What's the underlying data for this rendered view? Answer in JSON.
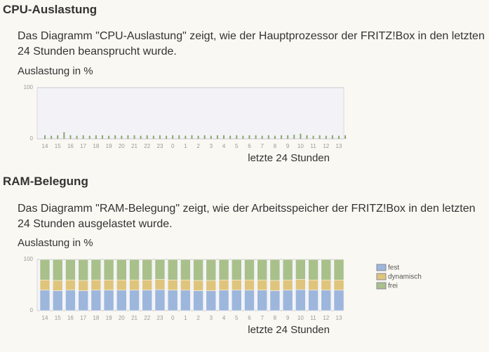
{
  "sections": [
    {
      "heading": "CPU-Auslastung",
      "description": "Das Diagramm \"CPU-Auslastung\" zeigt, wie der Hauptprozessor der FRITZ!Box in den letzten 24 Stunden beansprucht wurde."
    },
    {
      "heading": "RAM-Belegung",
      "description": "Das Diagramm \"RAM-Belegung\" zeigt, wie der Arbeitsspeicher der FRITZ!Box in den letzten 24 Stunden ausgelastet wurde."
    }
  ],
  "chart_data": [
    {
      "type": "bar",
      "ylabel": "Auslastung in %",
      "xlabel": "letzte 24 Stunden",
      "color": "#8aa66e",
      "ylim": [
        0,
        100
      ],
      "yticks": [
        0,
        100
      ],
      "categories": [
        "14",
        null,
        "15",
        null,
        "16",
        null,
        "17",
        null,
        "18",
        null,
        "19",
        null,
        "20",
        null,
        "21",
        null,
        "22",
        null,
        "23",
        null,
        "0",
        null,
        "1",
        null,
        "2",
        null,
        "3",
        null,
        "4",
        null,
        "5",
        null,
        "6",
        null,
        "7",
        null,
        "8",
        null,
        "9",
        null,
        "10",
        null,
        "11",
        null,
        "12",
        null,
        "13",
        null
      ],
      "values": [
        7,
        6,
        7,
        13,
        7,
        6,
        7,
        6,
        7,
        7,
        6,
        7,
        6,
        7,
        7,
        6,
        7,
        6,
        7,
        6,
        7,
        7,
        6,
        7,
        6,
        7,
        6,
        7,
        7,
        6,
        7,
        6,
        7,
        7,
        6,
        7,
        6,
        7,
        7,
        8,
        10,
        7,
        6,
        7,
        6,
        7,
        6,
        7
      ]
    },
    {
      "type": "stacked_bar",
      "ylabel": "Auslastung in %",
      "xlabel": "letzte 24 Stunden",
      "ylim": [
        0,
        100
      ],
      "yticks": [
        0,
        100
      ],
      "categories": [
        "14",
        "15",
        "16",
        "17",
        "18",
        "19",
        "20",
        "21",
        "22",
        "23",
        "0",
        "1",
        "2",
        "3",
        "4",
        "5",
        "6",
        "7",
        "8",
        "9",
        "10",
        "11",
        "12",
        "13"
      ],
      "series": [
        {
          "name": "fest",
          "color": "#9db6dc",
          "values": [
            40,
            39,
            40,
            39,
            40,
            40,
            40,
            40,
            40,
            41,
            40,
            40,
            39,
            39,
            40,
            40,
            40,
            40,
            39,
            40,
            41,
            40,
            40,
            40
          ]
        },
        {
          "name": "dynamisch",
          "color": "#dfc47c",
          "values": [
            20,
            20,
            20,
            20,
            20,
            20,
            20,
            20,
            20,
            20,
            20,
            20,
            20,
            20,
            20,
            20,
            20,
            20,
            20,
            20,
            20,
            20,
            20,
            20
          ]
        },
        {
          "name": "frei",
          "color": "#a9c08b",
          "values": [
            40,
            41,
            40,
            41,
            40,
            40,
            40,
            40,
            40,
            39,
            40,
            40,
            41,
            41,
            40,
            40,
            40,
            40,
            41,
            40,
            39,
            40,
            40,
            40
          ]
        }
      ]
    }
  ]
}
